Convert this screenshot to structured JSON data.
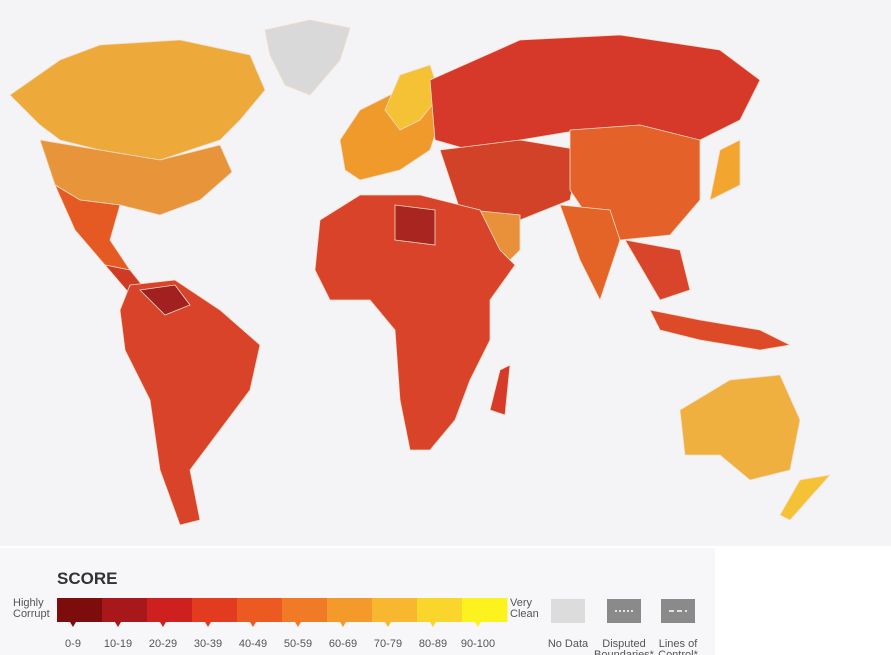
{
  "legend": {
    "title": "SCORE",
    "low_label": [
      "Highly",
      "Corrupt"
    ],
    "high_label": [
      "Very",
      "Clean"
    ],
    "ranges": [
      {
        "label": "0-9",
        "color": "#7d0c0c"
      },
      {
        "label": "10-19",
        "color": "#a8171a"
      },
      {
        "label": "20-29",
        "color": "#cf2020"
      },
      {
        "label": "30-39",
        "color": "#e23b1f"
      },
      {
        "label": "40-49",
        "color": "#ec5a22"
      },
      {
        "label": "50-59",
        "color": "#f07a25"
      },
      {
        "label": "60-69",
        "color": "#f49a2b"
      },
      {
        "label": "70-79",
        "color": "#f7b830"
      },
      {
        "label": "80-89",
        "color": "#fad52c"
      },
      {
        "label": "90-100",
        "color": "#fcf21e"
      }
    ],
    "extras": [
      {
        "lines": [
          "No Data"
        ]
      },
      {
        "lines": [
          "Disputed",
          "Boundaries*"
        ]
      },
      {
        "lines": [
          "Lines of",
          "Control*"
        ]
      }
    ]
  }
}
